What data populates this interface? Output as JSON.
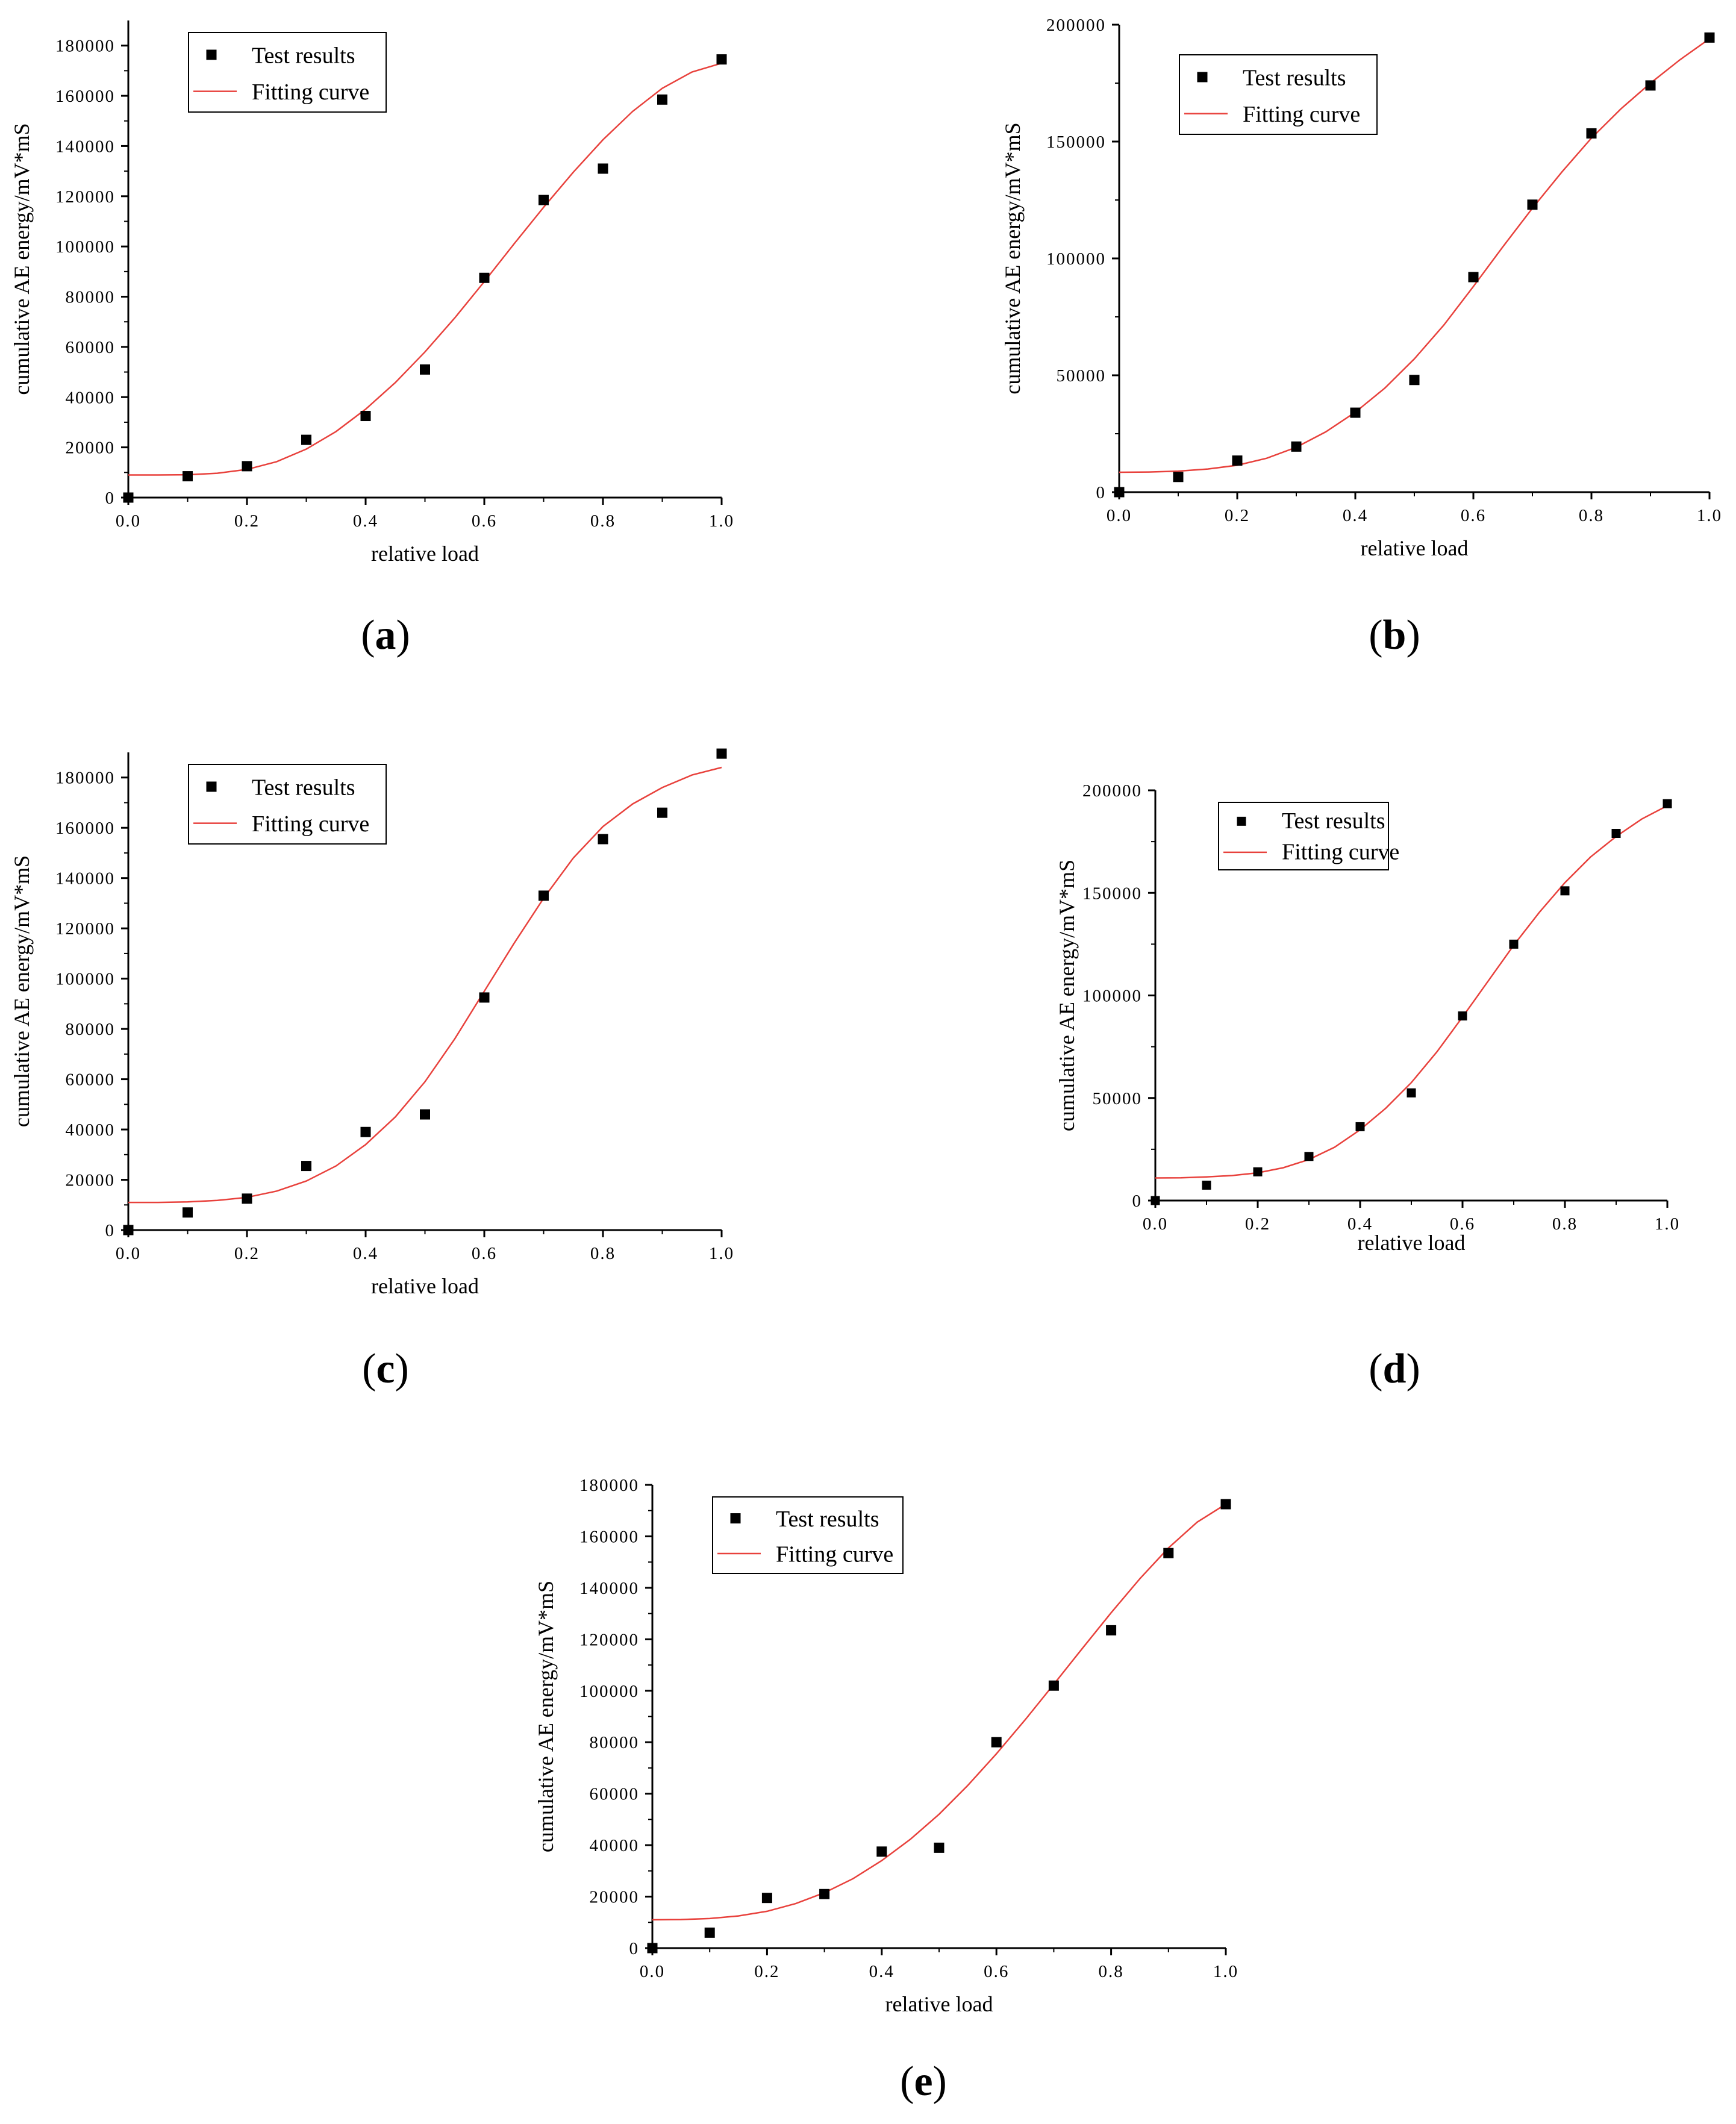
{
  "figure": {
    "panel_labels": [
      "(a)",
      "(b)",
      "(c)",
      "(d)",
      "(e)"
    ]
  },
  "colors": {
    "points": "#000000",
    "curve": "#e8413c",
    "axes": "#000000"
  },
  "chart_data": [
    {
      "panel": "(a)",
      "type": "scatter",
      "xlabel": "relative load",
      "ylabel": "cumulative AE energy/mV*mS",
      "xlim": [
        0,
        1.0
      ],
      "ylim": [
        0,
        190000
      ],
      "xticks": [
        "0.0",
        "0.2",
        "0.4",
        "0.6",
        "0.8",
        "1.0"
      ],
      "yticks": [
        0,
        20000,
        40000,
        60000,
        80000,
        100000,
        120000,
        140000,
        160000,
        180000
      ],
      "legend_position": "top-left",
      "series": [
        {
          "name": "Test results",
          "kind": "points",
          "x": [
            0,
            0.1,
            0.2,
            0.3,
            0.4,
            0.5,
            0.6,
            0.7,
            0.8,
            0.9,
            1.0
          ],
          "y": [
            0,
            8500,
            12500,
            23000,
            32500,
            51000,
            87500,
            118500,
            131000,
            158500,
            174500
          ]
        },
        {
          "name": "Fitting curve",
          "kind": "curve",
          "x": [
            0,
            0.05,
            0.1,
            0.15,
            0.2,
            0.25,
            0.3,
            0.35,
            0.4,
            0.45,
            0.5,
            0.55,
            0.6,
            0.65,
            0.7,
            0.75,
            0.8,
            0.85,
            0.9,
            0.95,
            1.0
          ],
          "y": [
            9000,
            9000,
            9100,
            9700,
            11200,
            14300,
            19300,
            26300,
            35200,
            45800,
            58000,
            71500,
            86000,
            101000,
            115600,
            129600,
            142500,
            153800,
            163000,
            169500,
            173000
          ]
        }
      ]
    },
    {
      "panel": "(b)",
      "type": "scatter",
      "xlabel": "relative load",
      "ylabel": "cumulative AE energy/mV*mS",
      "xlim": [
        0,
        1.0
      ],
      "ylim": [
        0,
        200000
      ],
      "xticks": [
        "0.0",
        "0.2",
        "0.4",
        "0.6",
        "0.8",
        "1.0"
      ],
      "yticks": [
        0,
        50000,
        100000,
        150000,
        200000
      ],
      "legend_position": "top-left",
      "series": [
        {
          "name": "Test results",
          "kind": "points",
          "x": [
            0,
            0.1,
            0.2,
            0.3,
            0.4,
            0.5,
            0.6,
            0.7,
            0.8,
            0.9,
            1.0
          ],
          "y": [
            0,
            6500,
            13500,
            19500,
            34000,
            48000,
            92000,
            123000,
            153500,
            174000,
            194500
          ]
        },
        {
          "name": "Fitting curve",
          "kind": "curve",
          "x": [
            0,
            0.05,
            0.1,
            0.15,
            0.2,
            0.25,
            0.3,
            0.35,
            0.4,
            0.45,
            0.5,
            0.55,
            0.6,
            0.65,
            0.7,
            0.75,
            0.8,
            0.85,
            0.9,
            0.95,
            1.0
          ],
          "y": [
            8500,
            8600,
            9000,
            9900,
            11500,
            14500,
            19200,
            25800,
            34200,
            44500,
            57000,
            71500,
            88000,
            105000,
            121500,
            137000,
            151500,
            164000,
            175000,
            185000,
            194000
          ]
        }
      ]
    },
    {
      "panel": "(c)",
      "type": "scatter",
      "xlabel": "relative load",
      "ylabel": "cumulative AE energy/mV*mS",
      "xlim": [
        0,
        1.0
      ],
      "ylim": [
        0,
        190000
      ],
      "xticks": [
        "0.0",
        "0.2",
        "0.4",
        "0.6",
        "0.8",
        "1.0"
      ],
      "yticks": [
        0,
        20000,
        40000,
        60000,
        80000,
        100000,
        120000,
        140000,
        160000,
        180000
      ],
      "legend_position": "top-left",
      "series": [
        {
          "name": "Test results",
          "kind": "points",
          "x": [
            0,
            0.1,
            0.2,
            0.3,
            0.4,
            0.5,
            0.6,
            0.7,
            0.8,
            0.9,
            1.0
          ],
          "y": [
            0,
            7000,
            12500,
            25500,
            39000,
            46000,
            92500,
            133000,
            155500,
            166000,
            189500
          ]
        },
        {
          "name": "Fitting curve",
          "kind": "curve",
          "x": [
            0,
            0.05,
            0.1,
            0.15,
            0.2,
            0.25,
            0.3,
            0.35,
            0.4,
            0.45,
            0.5,
            0.55,
            0.6,
            0.65,
            0.7,
            0.75,
            0.8,
            0.85,
            0.9,
            0.95,
            1.0
          ],
          "y": [
            11000,
            11000,
            11200,
            11800,
            13000,
            15500,
            19500,
            25500,
            34000,
            45000,
            59000,
            76000,
            95000,
            114000,
            132000,
            148000,
            160500,
            169500,
            176000,
            181000,
            184000
          ]
        }
      ]
    },
    {
      "panel": "(d)",
      "type": "scatter",
      "xlabel": "relative load",
      "ylabel": "cumulative AE energy/mV*mS",
      "xlim": [
        0,
        1.0
      ],
      "ylim": [
        0,
        200000
      ],
      "xticks": [
        "0.0",
        "0.2",
        "0.4",
        "0.6",
        "0.8",
        "1.0"
      ],
      "yticks": [
        0,
        50000,
        100000,
        150000,
        200000
      ],
      "legend_position": "top-left",
      "series": [
        {
          "name": "Test results",
          "kind": "points",
          "x": [
            0,
            0.1,
            0.2,
            0.3,
            0.4,
            0.5,
            0.6,
            0.7,
            0.8,
            0.9,
            1.0
          ],
          "y": [
            0,
            7500,
            14000,
            21500,
            36000,
            52500,
            90000,
            125000,
            151000,
            179000,
            193500
          ]
        },
        {
          "name": "Fitting curve",
          "kind": "curve",
          "x": [
            0,
            0.05,
            0.1,
            0.15,
            0.2,
            0.25,
            0.3,
            0.35,
            0.4,
            0.45,
            0.5,
            0.55,
            0.6,
            0.65,
            0.7,
            0.75,
            0.8,
            0.85,
            0.9,
            0.95,
            1.0
          ],
          "y": [
            11000,
            11100,
            11500,
            12200,
            13500,
            16000,
            20000,
            26000,
            34500,
            45000,
            57500,
            72500,
            89500,
            107000,
            124500,
            140500,
            155000,
            167500,
            177500,
            186000,
            192500
          ]
        }
      ]
    },
    {
      "panel": "(e)",
      "type": "scatter",
      "xlabel": "relative load",
      "ylabel": "cumulative AE energy/mV*mS",
      "xlim": [
        0,
        1.0
      ],
      "ylim": [
        0,
        180000
      ],
      "xticks": [
        "0.0",
        "0.2",
        "0.4",
        "0.6",
        "0.8",
        "1.0"
      ],
      "yticks": [
        0,
        20000,
        40000,
        60000,
        80000,
        100000,
        120000,
        140000,
        160000,
        180000
      ],
      "legend_position": "top-left",
      "series": [
        {
          "name": "Test results",
          "kind": "points",
          "x": [
            0,
            0.1,
            0.2,
            0.3,
            0.4,
            0.5,
            0.6,
            0.7,
            0.8,
            0.9,
            1.0
          ],
          "y": [
            0,
            6000,
            19500,
            21000,
            37500,
            39000,
            80000,
            102000,
            123500,
            153500,
            172500
          ]
        },
        {
          "name": "Fitting curve",
          "kind": "curve",
          "x": [
            0,
            0.05,
            0.1,
            0.15,
            0.2,
            0.25,
            0.3,
            0.35,
            0.4,
            0.45,
            0.5,
            0.55,
            0.6,
            0.65,
            0.7,
            0.75,
            0.8,
            0.85,
            0.9,
            0.95,
            1.0
          ],
          "y": [
            11000,
            11100,
            11500,
            12500,
            14300,
            17300,
            21500,
            27000,
            34000,
            42300,
            52000,
            63200,
            75500,
            88700,
            102500,
            116500,
            130300,
            143500,
            155500,
            165500,
            172500
          ]
        }
      ]
    }
  ]
}
